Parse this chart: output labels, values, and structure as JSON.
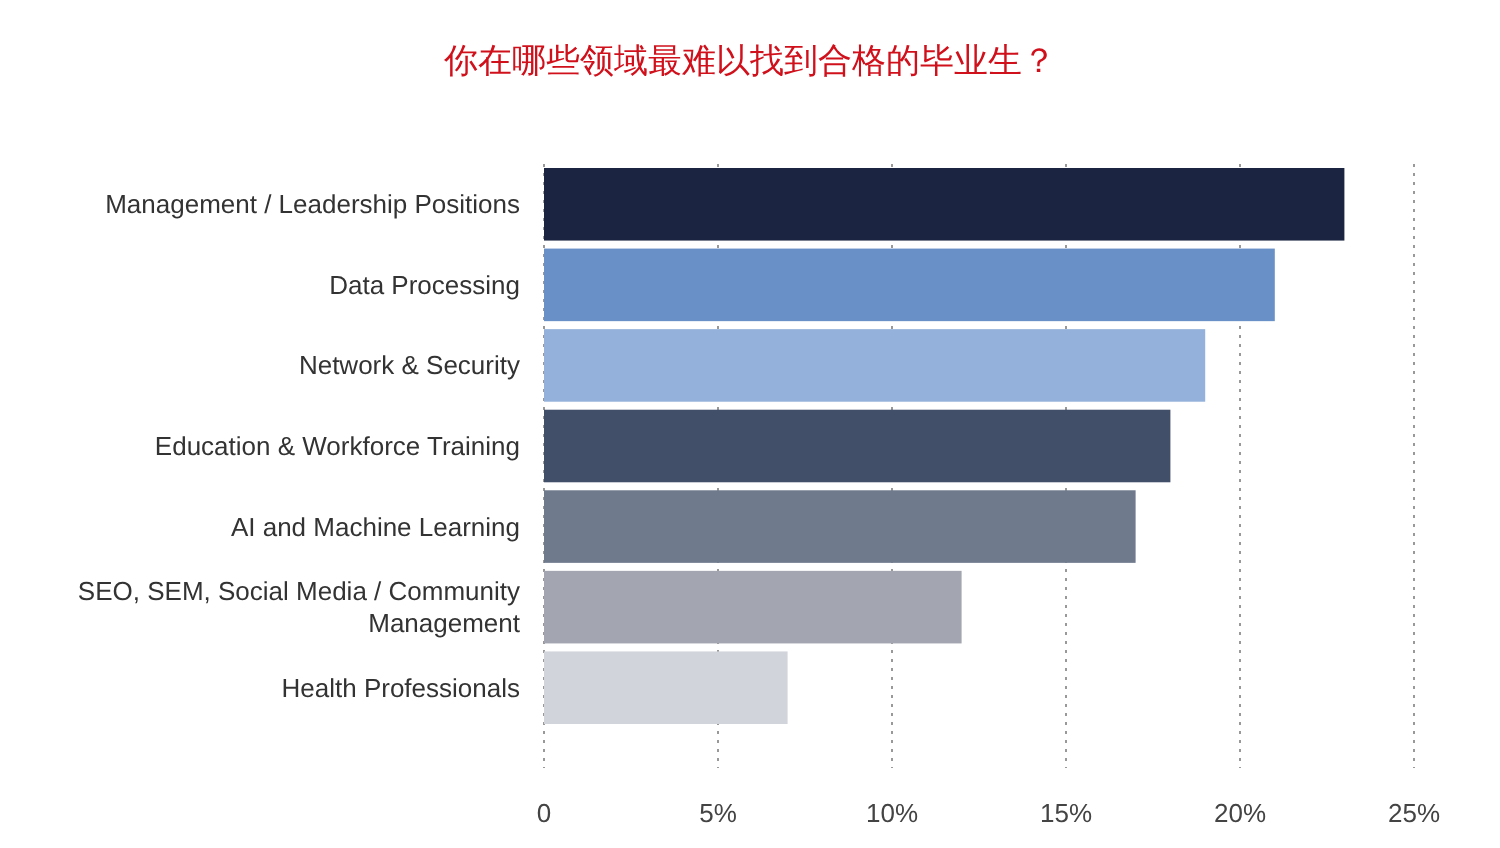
{
  "chart_data": {
    "type": "bar",
    "orientation": "horizontal",
    "title": "你在哪些领域最难以找到合格的毕业生？",
    "categories": [
      "Management / Leadership Positions",
      "Data Processing",
      "Network & Security",
      "Education & Workforce Training",
      "AI and Machine Learning",
      "SEO, SEM, Social Media / Community Management",
      "Health Professionals"
    ],
    "values": [
      23,
      21,
      19,
      18,
      17,
      12,
      7
    ],
    "colors": [
      "#1b2542",
      "#6a90c8",
      "#93b1da",
      "#424f68",
      "#6f7a8c",
      "#a3a6b0",
      "#d1d4da"
    ],
    "xlim": [
      0,
      25
    ],
    "xticks": [
      0,
      {
        "value": 5,
        "label": "5%"
      },
      {
        "value": 10,
        "label": "10%"
      },
      {
        "value": 15,
        "label": "15%"
      },
      {
        "value": 20,
        "label": "20%"
      },
      {
        "value": 25,
        "label": "25%"
      }
    ],
    "grid": "x"
  }
}
